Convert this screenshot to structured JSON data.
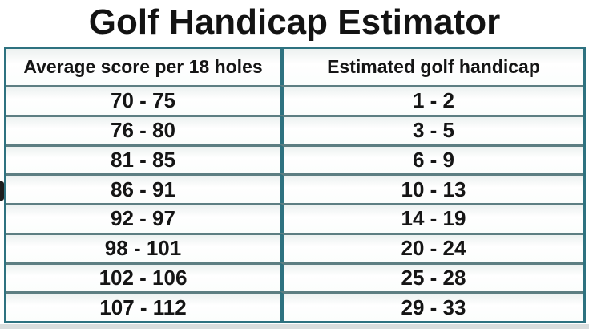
{
  "title": "Golf Handicap Estimator",
  "table": {
    "headers": [
      "Average score per 18 holes",
      "Estimated golf handicap"
    ],
    "rows": [
      {
        "score": "70 - 75",
        "handicap": "1 - 2"
      },
      {
        "score": "76 - 80",
        "handicap": "3 - 5"
      },
      {
        "score": "81 - 85",
        "handicap": "6 - 9"
      },
      {
        "score": "86 - 91",
        "handicap": "10 - 13"
      },
      {
        "score": "92 - 97",
        "handicap": "14 - 19"
      },
      {
        "score": "98 - 101",
        "handicap": "20 - 24"
      },
      {
        "score": "102 - 106",
        "handicap": "25 - 28"
      },
      {
        "score": "107 - 112",
        "handicap": "29 - 33"
      }
    ]
  },
  "chart_data": {
    "type": "table",
    "title": "Golf Handicap Estimator",
    "columns": [
      "Average score per 18 holes",
      "Estimated golf handicap"
    ],
    "rows": [
      [
        "70 - 75",
        "1 - 2"
      ],
      [
        "76 - 80",
        "3 - 5"
      ],
      [
        "81 - 85",
        "6 - 9"
      ],
      [
        "86 - 91",
        "10 - 13"
      ],
      [
        "92 - 97",
        "14 - 19"
      ],
      [
        "98 - 101",
        "20 - 24"
      ],
      [
        "102 - 106",
        "25 - 28"
      ],
      [
        "107 - 112",
        "29 - 33"
      ]
    ]
  },
  "colors": {
    "table_border": "#2e7280",
    "row_separator": "#5d7e82",
    "cell_background": "#fdfffe",
    "text": "#151515",
    "bottom_strip": "#d9dddd"
  }
}
